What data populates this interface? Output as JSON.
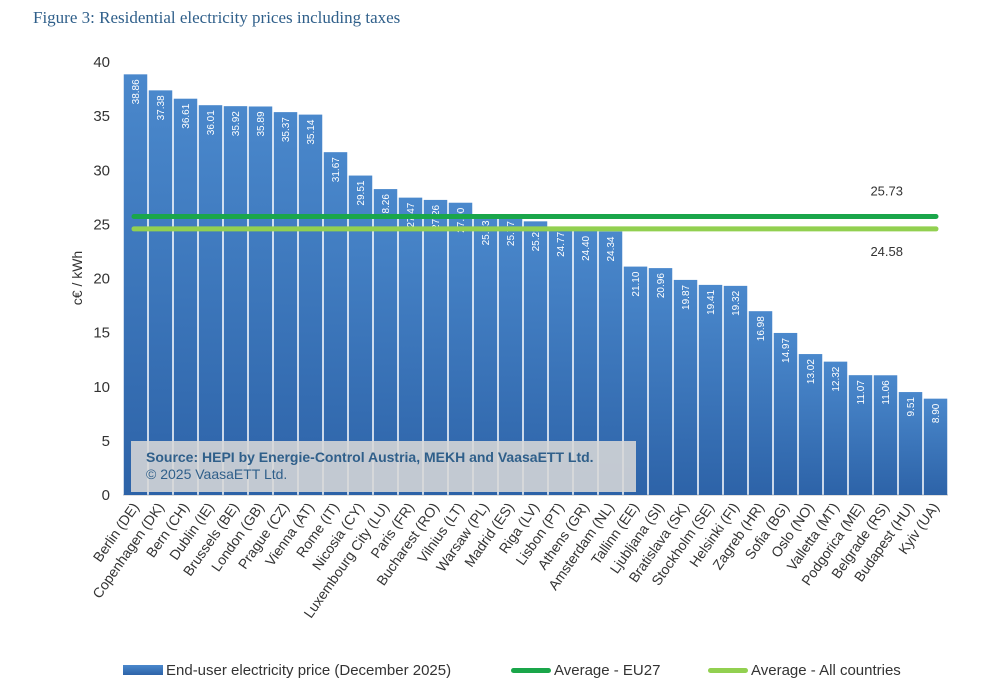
{
  "figure_title": "Figure 3: Residential electricity prices including taxes",
  "source": {
    "line1": "Source: HEPI by Energie-Control Austria, MEKH and VaasaETT Ltd.",
    "line2": "© 2025 VaasaETT Ltd."
  },
  "legend": {
    "bar": "End-user electricity price (December 2025)",
    "avg_eu27": "Average - EU27",
    "avg_all": "Average - All countries"
  },
  "colors": {
    "bar_top": "#4a88cc",
    "bar_bottom": "#2d63a8",
    "avg_eu27": "#1aa64a",
    "avg_all": "#92d050"
  },
  "chart_data": {
    "type": "bar",
    "title": "Figure 3: Residential electricity prices including taxes",
    "ylabel": "c€ / kWh",
    "xlabel": "",
    "ylim": [
      0,
      40
    ],
    "yticks": [
      0,
      5,
      10,
      15,
      20,
      25,
      30,
      35,
      40
    ],
    "grid": false,
    "legend_position": "bottom",
    "categories": [
      "Berlin (DE)",
      "Copenhagen (DK)",
      "Bern (CH)",
      "Dublin (IE)",
      "Brussels (BE)",
      "London (GB)",
      "Prague (CZ)",
      "Vienna (AT)",
      "Rome (IT)",
      "Nicosia (CY)",
      "Luxembourg City (LU)",
      "Paris (FR)",
      "Bucharest (RO)",
      "Vilnius (LT)",
      "Warsaw (PL)",
      "Madrid (ES)",
      "Riga (LV)",
      "Lisbon (PT)",
      "Athens (GR)",
      "Amsterdam (NL)",
      "Tallinn (EE)",
      "Ljubljana (SI)",
      "Bratislava (SK)",
      "Stockholm (SE)",
      "Helsinki (FI)",
      "Zagreb (HR)",
      "Sofia (BG)",
      "Oslo (NO)",
      "Valletta (MT)",
      "Podgorica (ME)",
      "Belgrade (RS)",
      "Budapest (HU)",
      "Kyiv (UA)"
    ],
    "series": [
      {
        "name": "End-user electricity price (December 2025)",
        "values": [
          38.86,
          37.38,
          36.61,
          36.01,
          35.92,
          35.89,
          35.37,
          35.14,
          31.67,
          29.51,
          28.26,
          27.47,
          27.26,
          27.0,
          25.83,
          25.77,
          25.28,
          24.77,
          24.4,
          24.34,
          21.1,
          20.96,
          19.87,
          19.41,
          19.32,
          16.98,
          14.97,
          13.02,
          12.32,
          11.07,
          11.06,
          9.51,
          8.9
        ],
        "labels": [
          "38.86",
          "37.38",
          "36.61",
          "36.01",
          "35.92",
          "35.89",
          "35.37",
          "35.14",
          "31.67",
          "29.51",
          "28.26",
          "27.47",
          "27.26",
          "27.00",
          "25.83",
          "25.77",
          "25.28",
          "24.77",
          "24.40",
          "24.34",
          "21.10",
          "20.96",
          "19.87",
          "19.41",
          "19.32",
          "16.98",
          "14.97",
          "13.02",
          "12.32",
          "11.07",
          "11.06",
          "9.51",
          "8.90"
        ]
      }
    ],
    "reference_lines": [
      {
        "name": "Average - EU27",
        "value": 25.73,
        "label": "25.73"
      },
      {
        "name": "Average - All countries",
        "value": 24.58,
        "label": "24.58"
      }
    ]
  }
}
